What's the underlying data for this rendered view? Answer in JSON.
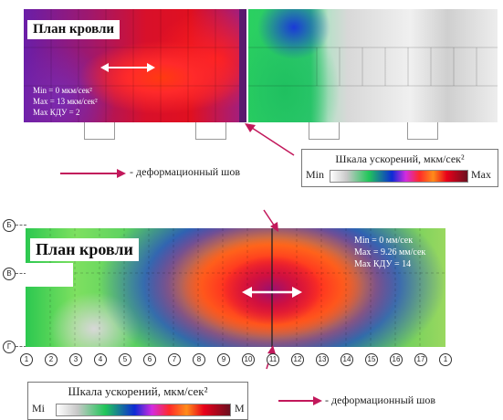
{
  "top_panel": {
    "title": "План кровли",
    "stats": [
      "Min = 0 мкм/сек²",
      "Max = 13 мкм/сек²",
      "Max КДУ = 2"
    ]
  },
  "top_scale": {
    "title": "Шкала ускорений, мкм/сек²",
    "min_label": "Min",
    "max_label": "Max"
  },
  "top_legend": {
    "text": "- деформационный шов"
  },
  "bottom_panel": {
    "title": "План кровли",
    "stats": [
      "Min = 0 мм/сек",
      "Max = 9.26 мм/сек",
      "Max КДУ = 14"
    ],
    "row_axes": [
      "Б",
      "В",
      "Г"
    ],
    "col_axes": [
      "1",
      "2",
      "3",
      "4",
      "5",
      "6",
      "7",
      "8",
      "9",
      "10",
      "11",
      "12",
      "13",
      "14",
      "15",
      "16",
      "17",
      "1"
    ]
  },
  "bottom_scale": {
    "title": "Шкала ускорений, мкм/сек²",
    "min_label": "Mi",
    "max_label": "M"
  },
  "bottom_legend": {
    "text": "- деформационный шов"
  },
  "colors": {
    "arrow": "#c2185b",
    "min": "#ffffff",
    "max": "#6b1020"
  }
}
